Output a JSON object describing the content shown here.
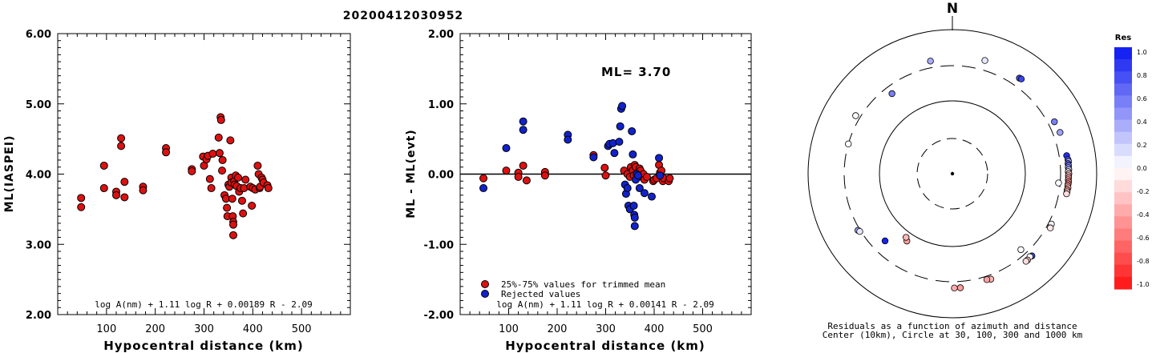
{
  "event_id": "20200412030952",
  "chart_data": [
    {
      "type": "scatter",
      "xlabel": "Hypocentral distance (km)",
      "ylabel": "ML(IASPEI)",
      "xlim": [
        0,
        600
      ],
      "ylim": [
        2.0,
        6.0
      ],
      "xticks": [
        "100",
        "200",
        "300",
        "400",
        "500"
      ],
      "yticks": [
        "2.00",
        "3.00",
        "4.00",
        "5.00",
        "6.00"
      ],
      "formula": "log A(nm) + 1.11 log R + 0.00189 R - 2.09",
      "series": [
        {
          "color": "#dd1111",
          "points": [
            [
              48,
              3.66
            ],
            [
              48,
              3.53
            ],
            [
              95,
              4.12
            ],
            [
              95,
              3.8
            ],
            [
              120,
              3.75
            ],
            [
              120,
              3.7
            ],
            [
              130,
              4.51
            ],
            [
              130,
              4.4
            ],
            [
              137,
              3.89
            ],
            [
              137,
              3.67
            ],
            [
              175,
              3.82
            ],
            [
              175,
              3.77
            ],
            [
              222,
              4.37
            ],
            [
              222,
              4.31
            ],
            [
              275,
              4.07
            ],
            [
              275,
              4.04
            ],
            [
              298,
              4.25
            ],
            [
              300,
              4.12
            ],
            [
              305,
              4.21
            ],
            [
              308,
              4.26
            ],
            [
              312,
              3.93
            ],
            [
              315,
              3.8
            ],
            [
              318,
              4.29
            ],
            [
              330,
              4.52
            ],
            [
              332,
              4.3
            ],
            [
              334,
              4.81
            ],
            [
              335,
              4.77
            ],
            [
              337,
              4.05
            ],
            [
              338,
              4.2
            ],
            [
              342,
              3.7
            ],
            [
              345,
              3.65
            ],
            [
              347,
              3.52
            ],
            [
              348,
              3.4
            ],
            [
              350,
              3.85
            ],
            [
              352,
              3.82
            ],
            [
              354,
              4.48
            ],
            [
              356,
              3.95
            ],
            [
              356,
              3.88
            ],
            [
              358,
              3.65
            ],
            [
              359,
              3.4
            ],
            [
              360,
              3.32
            ],
            [
              360,
              3.28
            ],
            [
              360,
              3.13
            ],
            [
              362,
              3.9
            ],
            [
              363,
              3.85
            ],
            [
              365,
              3.98
            ],
            [
              367,
              3.83
            ],
            [
              370,
              3.95
            ],
            [
              372,
              3.75
            ],
            [
              375,
              3.8
            ],
            [
              378,
              3.62
            ],
            [
              380,
              3.44
            ],
            [
              382,
              3.8
            ],
            [
              385,
              3.92
            ],
            [
              395,
              3.82
            ],
            [
              398,
              3.55
            ],
            [
              400,
              3.8
            ],
            [
              405,
              3.78
            ],
            [
              410,
              4.12
            ],
            [
              412,
              4.0
            ],
            [
              414,
              3.8
            ],
            [
              415,
              3.82
            ],
            [
              418,
              3.95
            ],
            [
              420,
              3.92
            ],
            [
              422,
              3.88
            ],
            [
              430,
              3.84
            ],
            [
              432,
              3.8
            ]
          ]
        }
      ]
    },
    {
      "type": "scatter",
      "xlabel": "Hypocentral distance (km)",
      "ylabel": "ML - ML(evt)",
      "xlim": [
        0,
        600
      ],
      "ylim": [
        -2.0,
        2.0
      ],
      "xticks": [
        "100",
        "200",
        "300",
        "400",
        "500"
      ],
      "yticks": [
        "-2.00",
        "-1.00",
        "0.00",
        "1.00",
        "2.00"
      ],
      "annotation": "ML= 3.70",
      "formula": "log A(nm) + 1.11 log R + 0.00141 R - 2.09",
      "legend": [
        "25%-75% values for trimmed mean",
        "Rejected values"
      ],
      "series": [
        {
          "name": "25%-75% values for trimmed mean",
          "color": "#dd1111",
          "points": [
            [
              48,
              -0.06
            ],
            [
              95,
              0.05
            ],
            [
              120,
              0.02
            ],
            [
              120,
              -0.04
            ],
            [
              130,
              0.12
            ],
            [
              137,
              -0.09
            ],
            [
              175,
              0.03
            ],
            [
              175,
              -0.02
            ],
            [
              275,
              0.27
            ],
            [
              298,
              0.09
            ],
            [
              300,
              -0.02
            ],
            [
              338,
              0.05
            ],
            [
              345,
              0.0
            ],
            [
              350,
              -0.04
            ],
            [
              352,
              0.1
            ],
            [
              356,
              0.05
            ],
            [
              358,
              -0.02
            ],
            [
              360,
              0.13
            ],
            [
              362,
              0.1
            ],
            [
              365,
              -0.05
            ],
            [
              370,
              0.08
            ],
            [
              372,
              0.05
            ],
            [
              375,
              -0.04
            ],
            [
              378,
              0.0
            ],
            [
              380,
              -0.08
            ],
            [
              385,
              -0.04
            ],
            [
              398,
              -0.1
            ],
            [
              400,
              -0.08
            ],
            [
              405,
              -0.06
            ],
            [
              410,
              0.13
            ],
            [
              412,
              0.02
            ],
            [
              415,
              0.05
            ],
            [
              418,
              -0.1
            ],
            [
              420,
              -0.06
            ],
            [
              430,
              -0.1
            ],
            [
              432,
              -0.06
            ]
          ]
        },
        {
          "name": "Rejected values",
          "color": "#1122cc",
          "points": [
            [
              48,
              -0.2
            ],
            [
              95,
              0.37
            ],
            [
              130,
              0.75
            ],
            [
              130,
              0.63
            ],
            [
              222,
              0.56
            ],
            [
              222,
              0.49
            ],
            [
              275,
              0.24
            ],
            [
              305,
              0.4
            ],
            [
              308,
              0.43
            ],
            [
              315,
              0.44
            ],
            [
              318,
              0.3
            ],
            [
              328,
              0.46
            ],
            [
              330,
              0.68
            ],
            [
              332,
              0.93
            ],
            [
              334,
              0.97
            ],
            [
              340,
              -0.15
            ],
            [
              342,
              -0.28
            ],
            [
              345,
              -0.2
            ],
            [
              347,
              -0.45
            ],
            [
              350,
              -0.5
            ],
            [
              354,
              0.61
            ],
            [
              356,
              0.28
            ],
            [
              358,
              -0.45
            ],
            [
              359,
              -0.58
            ],
            [
              360,
              -0.62
            ],
            [
              360,
              -0.74
            ],
            [
              362,
              -0.08
            ],
            [
              364,
              0.0
            ],
            [
              367,
              -0.02
            ],
            [
              370,
              -0.2
            ],
            [
              380,
              -0.27
            ],
            [
              395,
              -0.32
            ],
            [
              410,
              0.23
            ],
            [
              412,
              -0.02
            ]
          ]
        }
      ]
    },
    {
      "type": "scatter",
      "subtype": "polar",
      "north_label": "N",
      "caption_line1": "Residuals as a function of azimuth and distance",
      "caption_line2": "Center (10km), Circle at 30, 100, 300 and 1000 km",
      "colorbar_title": "Res",
      "colorbar_ticks": [
        "1.0",
        "0.8",
        "0.6",
        "0.4",
        "0.2",
        "0.0",
        "-0.2",
        "-0.4",
        "-0.6",
        "-0.8",
        "-1.0"
      ],
      "colorbar_range": [
        -1.0,
        1.0
      ],
      "color_positive": "#0a16f0",
      "color_negative": "#ff1010",
      "points": [
        {
          "az": 16,
          "dist": 415,
          "res": 0.1
        },
        {
          "az": 35,
          "dist": 400,
          "res": 0.75
        },
        {
          "az": 36,
          "dist": 405,
          "res": 0.8
        },
        {
          "az": 63,
          "dist": 370,
          "res": 0.55
        },
        {
          "az": 69,
          "dist": 380,
          "res": 0.4
        },
        {
          "az": 81,
          "dist": 385,
          "res": 0.9
        },
        {
          "az": 83,
          "dist": 395,
          "res": 0.75
        },
        {
          "az": 84,
          "dist": 400,
          "res": 0.3
        },
        {
          "az": 85,
          "dist": 390,
          "res": 0.7
        },
        {
          "az": 86,
          "dist": 395,
          "res": 0.5
        },
        {
          "az": 87,
          "dist": 390,
          "res": 0.45
        },
        {
          "az": 88,
          "dist": 395,
          "res": 0.2
        },
        {
          "az": 89,
          "dist": 388,
          "res": -0.1
        },
        {
          "az": 90,
          "dist": 395,
          "res": -0.2
        },
        {
          "az": 91,
          "dist": 390,
          "res": -0.3
        },
        {
          "az": 92,
          "dist": 392,
          "res": -0.35
        },
        {
          "az": 93,
          "dist": 390,
          "res": -0.4
        },
        {
          "az": 94,
          "dist": 395,
          "res": -0.45
        },
        {
          "az": 95,
          "dist": 392,
          "res": -0.5
        },
        {
          "az": 96,
          "dist": 390,
          "res": -0.4
        },
        {
          "az": 97,
          "dist": 395,
          "res": -0.3
        },
        {
          "az": 98,
          "dist": 388,
          "res": -0.45
        },
        {
          "az": 99,
          "dist": 390,
          "res": -0.2
        },
        {
          "az": 100,
          "dist": 388,
          "res": -0.15
        },
        {
          "az": 95,
          "dist": 285,
          "res": 0.0
        },
        {
          "az": 117,
          "dist": 330,
          "res": 0.05
        },
        {
          "az": 119,
          "dist": 340,
          "res": -0.1
        },
        {
          "az": 136,
          "dist": 370,
          "res": 0.8
        },
        {
          "az": 137,
          "dist": 360,
          "res": 0.0
        },
        {
          "az": 139,
          "dist": 370,
          "res": -0.3
        },
        {
          "az": 140,
          "dist": 370,
          "res": -0.15
        },
        {
          "az": 138,
          "dist": 250,
          "res": 0.0
        },
        {
          "az": 160,
          "dist": 345,
          "res": -0.3
        },
        {
          "az": 162,
          "dist": 335,
          "res": -0.4
        },
        {
          "az": 176,
          "dist": 370,
          "res": -0.4
        },
        {
          "az": 179,
          "dist": 370,
          "res": -0.35
        },
        {
          "az": 214,
          "dist": 130,
          "res": -0.4
        },
        {
          "az": 216,
          "dist": 120,
          "res": -0.3
        },
        {
          "az": 225,
          "dist": 200,
          "res": 0.95
        },
        {
          "az": 239,
          "dist": 320,
          "res": 0.4
        },
        {
          "az": 238,
          "dist": 310,
          "res": 0.1
        },
        {
          "az": 286,
          "dist": 300,
          "res": 0.0
        },
        {
          "az": 301,
          "dist": 350,
          "res": 0.0
        },
        {
          "az": 323,
          "dist": 235,
          "res": 0.55
        },
        {
          "az": 349,
          "dist": 375,
          "res": 0.35
        }
      ]
    }
  ]
}
